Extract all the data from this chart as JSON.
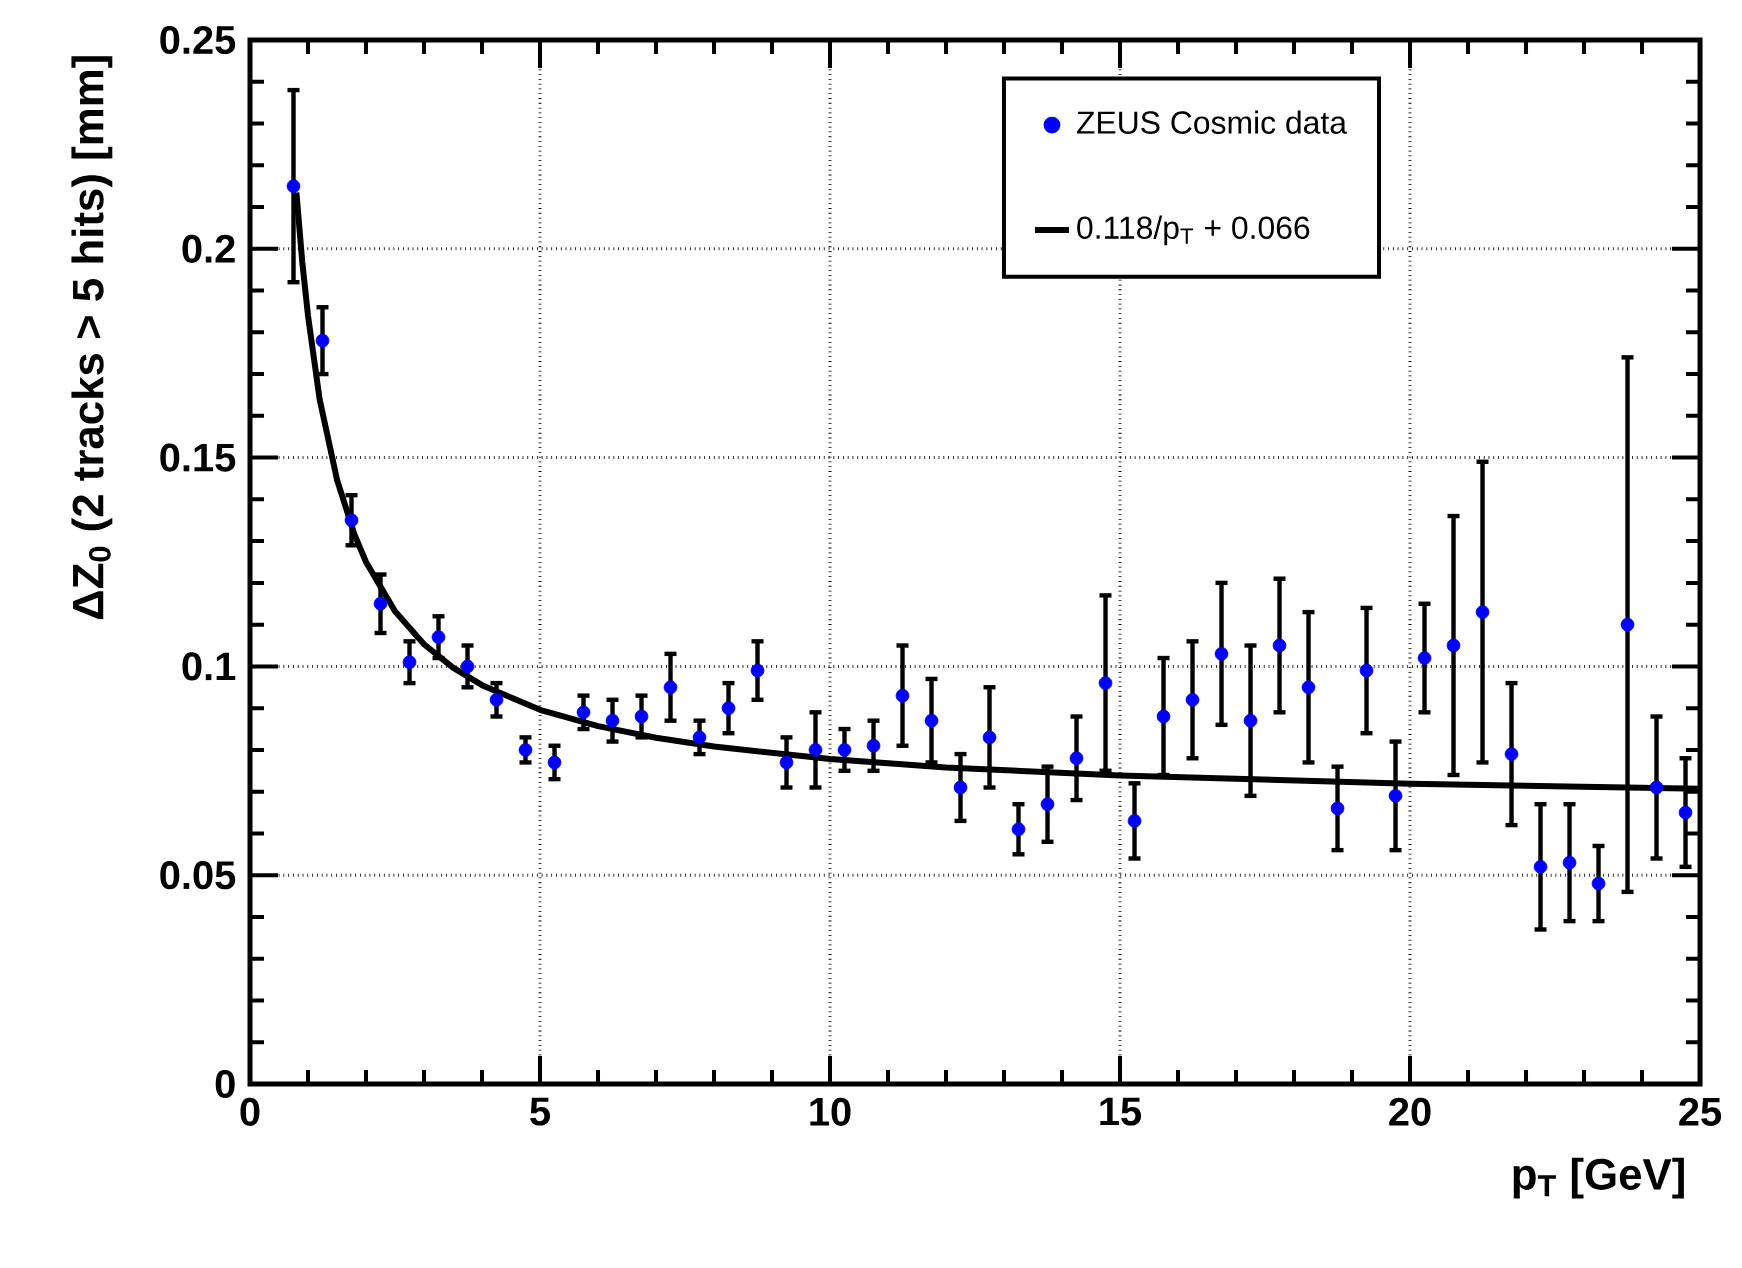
{
  "chart_data": {
    "type": "scatter",
    "xlabel": "p$_{T}$ [GeV]",
    "ylabel": "ΔZ$_{0}$ (2 tracks > 5 hits) [mm]",
    "xlim": [
      0,
      25
    ],
    "ylim": [
      0,
      0.25
    ],
    "xticks": [
      0,
      5,
      10,
      15,
      20,
      25
    ],
    "yticks": [
      0,
      0.05,
      0.1,
      0.15,
      0.2,
      0.25
    ],
    "grid": true,
    "legend": "top right",
    "marker": "circle",
    "series": [
      {
        "name": "ZEUS Cosmic data",
        "color": "#0000ff",
        "x": [
          0.75,
          1.25,
          1.75,
          2.25,
          2.75,
          3.25,
          3.75,
          4.25,
          4.75,
          5.25,
          5.75,
          6.25,
          6.75,
          7.25,
          7.75,
          8.25,
          8.75,
          9.25,
          9.75,
          10.25,
          10.75,
          11.25,
          11.75,
          12.25,
          12.75,
          13.25,
          13.75,
          14.25,
          14.75,
          15.25,
          15.75,
          16.25,
          16.75,
          17.25,
          17.75,
          18.25,
          18.75,
          19.25,
          19.75,
          20.25,
          20.75,
          21.25,
          21.75,
          22.25,
          22.75,
          23.25,
          23.75,
          24.25,
          24.75
        ],
        "values": [
          0.215,
          0.178,
          0.135,
          0.115,
          0.101,
          0.107,
          0.1,
          0.092,
          0.08,
          0.077,
          0.089,
          0.087,
          0.088,
          0.095,
          0.083,
          0.09,
          0.099,
          0.077,
          0.08,
          0.08,
          0.081,
          0.093,
          0.087,
          0.071,
          0.083,
          0.061,
          0.067,
          0.078,
          0.096,
          0.063,
          0.088,
          0.092,
          0.103,
          0.087,
          0.105,
          0.095,
          0.066,
          0.099,
          0.069,
          0.102,
          0.105,
          0.113,
          0.079,
          0.052,
          0.053,
          0.048,
          0.11,
          0.071,
          0.065
        ],
        "errors": [
          0.023,
          0.008,
          0.006,
          0.007,
          0.005,
          0.005,
          0.005,
          0.004,
          0.003,
          0.004,
          0.004,
          0.005,
          0.005,
          0.008,
          0.004,
          0.006,
          0.007,
          0.006,
          0.009,
          0.005,
          0.006,
          0.012,
          0.01,
          0.008,
          0.012,
          0.006,
          0.009,
          0.01,
          0.021,
          0.009,
          0.014,
          0.014,
          0.017,
          0.018,
          0.016,
          0.018,
          0.01,
          0.015,
          0.013,
          0.013,
          0.031,
          0.036,
          0.017,
          0.015,
          0.014,
          0.009,
          0.064,
          0.017,
          0.013
        ]
      },
      {
        "name": "0.118/p$_{T}$ + 0.066",
        "color": "#000000",
        "type": "line",
        "marker": "none",
        "x": [
          0.8,
          0.9,
          1,
          1.2,
          1.5,
          1.8,
          2,
          2.5,
          3,
          3.5,
          4,
          5,
          6,
          7,
          8,
          10,
          12,
          15,
          20,
          25
        ],
        "values": [
          0.2135,
          0.197,
          0.184,
          0.164,
          0.1447,
          0.1316,
          0.125,
          0.1132,
          0.1053,
          0.0997,
          0.0955,
          0.0896,
          0.0857,
          0.0829,
          0.0808,
          0.0778,
          0.0758,
          0.0739,
          0.0719,
          0.0707
        ]
      }
    ]
  }
}
